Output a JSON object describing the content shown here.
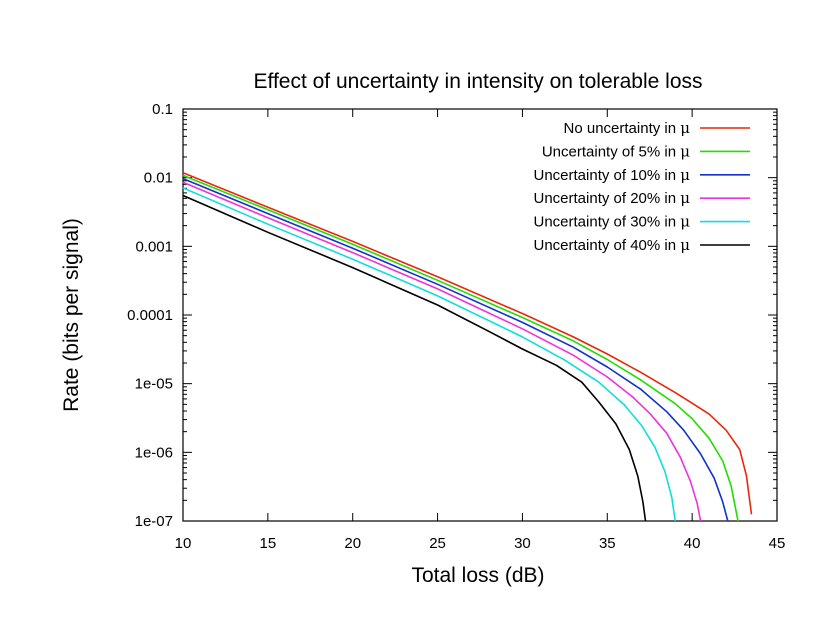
{
  "chart_data": {
    "type": "line",
    "title": "Effect of uncertainty in intensity on tolerable loss",
    "xlabel": "Total loss (dB)",
    "ylabel": "Rate (bits per signal)",
    "xlim": [
      10,
      45
    ],
    "ylim": [
      1e-07,
      0.1
    ],
    "yscale": "log",
    "grid": false,
    "legend_position": "top-right",
    "x_ticks": [
      10,
      15,
      20,
      25,
      30,
      35,
      40,
      45
    ],
    "x_tick_labels": [
      "10",
      "15",
      "20",
      "25",
      "30",
      "35",
      "40",
      "45"
    ],
    "y_ticks": [
      1e-07,
      1e-06,
      1e-05,
      0.0001,
      0.001,
      0.01,
      0.1
    ],
    "y_tick_labels": [
      "1e-07",
      "1e-06",
      "1e-05",
      "0.0001",
      "0.001",
      "0.01",
      "0.1"
    ],
    "series": [
      {
        "name": "No uncertainty in ",
        "mu": "μ",
        "color": "#e8280a",
        "points": [
          [
            10,
            0.0118
          ],
          [
            15,
            0.0037
          ],
          [
            20,
            0.00118
          ],
          [
            25,
            0.00036
          ],
          [
            30,
            0.000105
          ],
          [
            33,
            4.8e-05
          ],
          [
            35,
            2.7e-05
          ],
          [
            37,
            1.45e-05
          ],
          [
            39,
            7.4e-06
          ],
          [
            40,
            5.2e-06
          ],
          [
            41,
            3.6e-06
          ],
          [
            42,
            2.1e-06
          ],
          [
            42.8,
            1.1e-06
          ],
          [
            43.2,
            4.5e-07
          ],
          [
            43.5,
            1.25e-07
          ]
        ]
      },
      {
        "name": "Uncertainty of 5% in ",
        "mu": "μ",
        "color": "#22dd00",
        "points": [
          [
            10,
            0.0108
          ],
          [
            15,
            0.0034
          ],
          [
            20,
            0.00107
          ],
          [
            25,
            0.00032
          ],
          [
            30,
            9.2e-05
          ],
          [
            33,
            4.2e-05
          ],
          [
            35,
            2.25e-05
          ],
          [
            37,
            1.12e-05
          ],
          [
            39,
            5.1e-06
          ],
          [
            40,
            3.1e-06
          ],
          [
            41,
            1.6e-06
          ],
          [
            41.8,
            7.5e-07
          ],
          [
            42.3,
            3.2e-07
          ],
          [
            42.7,
            1e-07
          ]
        ]
      },
      {
        "name": "Uncertainty of 10% in ",
        "mu": "μ",
        "color": "#1133cc",
        "points": [
          [
            10,
            0.0097
          ],
          [
            15,
            0.003
          ],
          [
            20,
            0.00094
          ],
          [
            25,
            0.00028
          ],
          [
            30,
            7.8e-05
          ],
          [
            33,
            3.4e-05
          ],
          [
            35,
            1.75e-05
          ],
          [
            37,
            8.2e-06
          ],
          [
            38.5,
            3.9e-06
          ],
          [
            39.5,
            2.1e-06
          ],
          [
            40.5,
            9.5e-07
          ],
          [
            41.3,
            4.2e-07
          ],
          [
            41.8,
            1.9e-07
          ],
          [
            42.1,
            1e-07
          ]
        ]
      },
      {
        "name": "Uncertainty of 20% in ",
        "mu": "μ",
        "color": "#ee33dd",
        "points": [
          [
            10,
            0.0086
          ],
          [
            15,
            0.0026
          ],
          [
            20,
            0.00081
          ],
          [
            25,
            0.00024
          ],
          [
            30,
            6.3e-05
          ],
          [
            33,
            2.6e-05
          ],
          [
            35,
            1.25e-05
          ],
          [
            36.5,
            6.4e-06
          ],
          [
            37.5,
            3.7e-06
          ],
          [
            38.5,
            1.9e-06
          ],
          [
            39.3,
            8.5e-07
          ],
          [
            39.9,
            3.8e-07
          ],
          [
            40.3,
            1.8e-07
          ],
          [
            40.5,
            1e-07
          ]
        ]
      },
      {
        "name": "Uncertainty of 30% in ",
        "mu": "μ",
        "color": "#11dddd",
        "points": [
          [
            10,
            0.0071
          ],
          [
            15,
            0.0021
          ],
          [
            20,
            0.00065
          ],
          [
            25,
            0.00019
          ],
          [
            30,
            4.8e-05
          ],
          [
            32.5,
            2.2e-05
          ],
          [
            34.5,
            1.05e-05
          ],
          [
            36,
            4.9e-06
          ],
          [
            37,
            2.5e-06
          ],
          [
            37.8,
            1.2e-06
          ],
          [
            38.4,
            5.2e-07
          ],
          [
            38.8,
            2.2e-07
          ],
          [
            39.0,
            1e-07
          ]
        ]
      },
      {
        "name": "Uncertainty of 40% in ",
        "mu": "μ",
        "color": "#000000",
        "points": [
          [
            10,
            0.0055
          ],
          [
            15,
            0.0016
          ],
          [
            20,
            0.00049
          ],
          [
            25,
            0.00014
          ],
          [
            28,
            5.8e-05
          ],
          [
            30,
            3.2e-05
          ],
          [
            32,
            1.85e-05
          ],
          [
            33.5,
            1.05e-05
          ],
          [
            34.5,
            5.4e-06
          ],
          [
            35.5,
            2.6e-06
          ],
          [
            36.3,
            1.1e-06
          ],
          [
            36.8,
            4.5e-07
          ],
          [
            37.1,
            1.9e-07
          ],
          [
            37.25,
            1e-07
          ]
        ]
      }
    ]
  }
}
